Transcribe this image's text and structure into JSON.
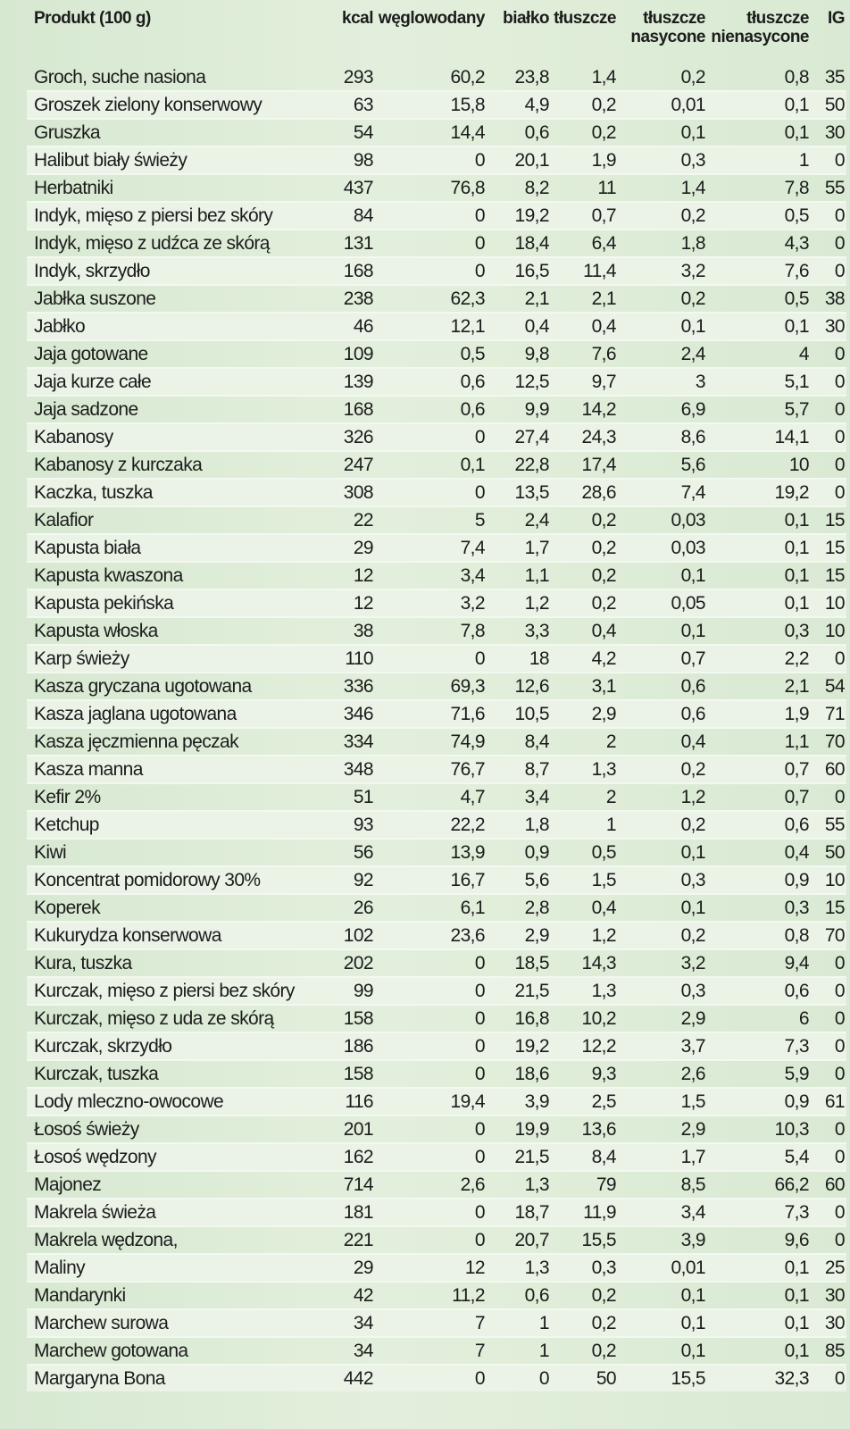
{
  "table": {
    "headers": [
      "Produkt (100 g)",
      "kcal",
      "węglowodany",
      "białko",
      "tłuszcze",
      "tłuszcze\nnasycone",
      "tłuszcze\nnienasycone",
      "IG"
    ],
    "rows": [
      [
        "Groch, suche nasiona",
        "293",
        "60,2",
        "23,8",
        "1,4",
        "0,2",
        "0,8",
        "35"
      ],
      [
        "Groszek zielony konserwowy",
        "63",
        "15,8",
        "4,9",
        "0,2",
        "0,01",
        "0,1",
        "50"
      ],
      [
        "Gruszka",
        "54",
        "14,4",
        "0,6",
        "0,2",
        "0,1",
        "0,1",
        "30"
      ],
      [
        "Halibut biały świeży",
        "98",
        "0",
        "20,1",
        "1,9",
        "0,3",
        "1",
        "0"
      ],
      [
        "Herbatniki",
        "437",
        "76,8",
        "8,2",
        "11",
        "1,4",
        "7,8",
        "55"
      ],
      [
        "Indyk, mięso z piersi bez skóry",
        "84",
        "0",
        "19,2",
        "0,7",
        "0,2",
        "0,5",
        "0"
      ],
      [
        "Indyk, mięso z udźca ze skórą",
        "131",
        "0",
        "18,4",
        "6,4",
        "1,8",
        "4,3",
        "0"
      ],
      [
        "Indyk, skrzydło",
        "168",
        "0",
        "16,5",
        "11,4",
        "3,2",
        "7,6",
        "0"
      ],
      [
        "Jabłka suszone",
        "238",
        "62,3",
        "2,1",
        "2,1",
        "0,2",
        "0,5",
        "38"
      ],
      [
        "Jabłko",
        "46",
        "12,1",
        "0,4",
        "0,4",
        "0,1",
        "0,1",
        "30"
      ],
      [
        "Jaja gotowane",
        "109",
        "0,5",
        "9,8",
        "7,6",
        "2,4",
        "4",
        "0"
      ],
      [
        "Jaja kurze całe",
        "139",
        "0,6",
        "12,5",
        "9,7",
        "3",
        "5,1",
        "0"
      ],
      [
        "Jaja sadzone",
        "168",
        "0,6",
        "9,9",
        "14,2",
        "6,9",
        "5,7",
        "0"
      ],
      [
        "Kabanosy",
        "326",
        "0",
        "27,4",
        "24,3",
        "8,6",
        "14,1",
        "0"
      ],
      [
        "Kabanosy z kurczaka",
        "247",
        "0,1",
        "22,8",
        "17,4",
        "5,6",
        "10",
        "0"
      ],
      [
        "Kaczka, tuszka",
        "308",
        "0",
        "13,5",
        "28,6",
        "7,4",
        "19,2",
        "0"
      ],
      [
        "Kalafior",
        "22",
        "5",
        "2,4",
        "0,2",
        "0,03",
        "0,1",
        "15"
      ],
      [
        "Kapusta biała",
        "29",
        "7,4",
        "1,7",
        "0,2",
        "0,03",
        "0,1",
        "15"
      ],
      [
        "Kapusta kwaszona",
        "12",
        "3,4",
        "1,1",
        "0,2",
        "0,1",
        "0,1",
        "15"
      ],
      [
        "Kapusta pekińska",
        "12",
        "3,2",
        "1,2",
        "0,2",
        "0,05",
        "0,1",
        "10"
      ],
      [
        "Kapusta włoska",
        "38",
        "7,8",
        "3,3",
        "0,4",
        "0,1",
        "0,3",
        "10"
      ],
      [
        "Karp świeży",
        "110",
        "0",
        "18",
        "4,2",
        "0,7",
        "2,2",
        "0"
      ],
      [
        "Kasza gryczana ugotowana",
        "336",
        "69,3",
        "12,6",
        "3,1",
        "0,6",
        "2,1",
        "54"
      ],
      [
        "Kasza jaglana ugotowana",
        "346",
        "71,6",
        "10,5",
        "2,9",
        "0,6",
        "1,9",
        "71"
      ],
      [
        "Kasza jęczmienna pęczak",
        "334",
        "74,9",
        "8,4",
        "2",
        "0,4",
        "1,1",
        "70"
      ],
      [
        "Kasza manna",
        "348",
        "76,7",
        "8,7",
        "1,3",
        "0,2",
        "0,7",
        "60"
      ],
      [
        "Kefir 2%",
        "51",
        "4,7",
        "3,4",
        "2",
        "1,2",
        "0,7",
        "0"
      ],
      [
        "Ketchup",
        "93",
        "22,2",
        "1,8",
        "1",
        "0,2",
        "0,6",
        "55"
      ],
      [
        "Kiwi",
        "56",
        "13,9",
        "0,9",
        "0,5",
        "0,1",
        "0,4",
        "50"
      ],
      [
        "Koncentrat pomidorowy 30%",
        "92",
        "16,7",
        "5,6",
        "1,5",
        "0,3",
        "0,9",
        "10"
      ],
      [
        "Koperek",
        "26",
        "6,1",
        "2,8",
        "0,4",
        "0,1",
        "0,3",
        "15"
      ],
      [
        "Kukurydza konserwowa",
        "102",
        "23,6",
        "2,9",
        "1,2",
        "0,2",
        "0,8",
        "70"
      ],
      [
        "Kura, tuszka",
        "202",
        "0",
        "18,5",
        "14,3",
        "3,2",
        "9,4",
        "0"
      ],
      [
        "Kurczak, mięso z piersi bez skóry",
        "99",
        "0",
        "21,5",
        "1,3",
        "0,3",
        "0,6",
        "0"
      ],
      [
        "Kurczak, mięso z uda ze skórą",
        "158",
        "0",
        "16,8",
        "10,2",
        "2,9",
        "6",
        "0"
      ],
      [
        "Kurczak, skrzydło",
        "186",
        "0",
        "19,2",
        "12,2",
        "3,7",
        "7,3",
        "0"
      ],
      [
        "Kurczak, tuszka",
        "158",
        "0",
        "18,6",
        "9,3",
        "2,6",
        "5,9",
        "0"
      ],
      [
        "Lody mleczno-owocowe",
        "116",
        "19,4",
        "3,9",
        "2,5",
        "1,5",
        "0,9",
        "61"
      ],
      [
        "Łosoś świeży",
        "201",
        "0",
        "19,9",
        "13,6",
        "2,9",
        "10,3",
        "0"
      ],
      [
        "Łosoś wędzony",
        "162",
        "0",
        "21,5",
        "8,4",
        "1,7",
        "5,4",
        "0"
      ],
      [
        "Majonez",
        "714",
        "2,6",
        "1,3",
        "79",
        "8,5",
        "66,2",
        "60"
      ],
      [
        "Makrela świeża",
        "181",
        "0",
        "18,7",
        "11,9",
        "3,4",
        "7,3",
        "0"
      ],
      [
        "Makrela wędzona,",
        "221",
        "0",
        "20,7",
        "15,5",
        "3,9",
        "9,6",
        "0"
      ],
      [
        "Maliny",
        "29",
        "12",
        "1,3",
        "0,3",
        "0,01",
        "0,1",
        "25"
      ],
      [
        "Mandarynki",
        "42",
        "11,2",
        "0,6",
        "0,2",
        "0,1",
        "0,1",
        "30"
      ],
      [
        "Marchew surowa",
        "34",
        "7",
        "1",
        "0,2",
        "0,1",
        "0,1",
        "30"
      ],
      [
        "Marchew gotowana",
        "34",
        "7",
        "1",
        "0,2",
        "0,1",
        "0,1",
        "85"
      ],
      [
        "Margaryna Bona",
        "442",
        "0",
        "0",
        "50",
        "15,5",
        "32,3",
        "0"
      ]
    ]
  }
}
